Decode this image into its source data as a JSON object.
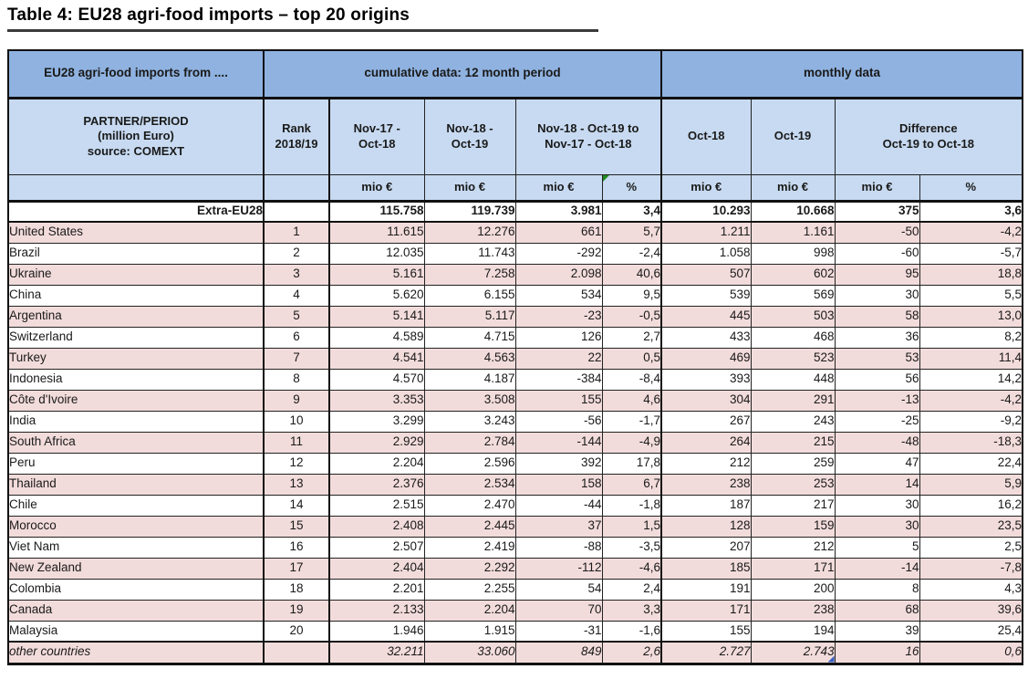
{
  "title": "Table 4: EU28 agri-food imports – top 20 origins",
  "colors": {
    "group_header_blue": "#8FB2E0",
    "sub_header_blue": "#C7DAF1",
    "row_pink": "#F2DCDB",
    "flag_green": "#1f8a1f",
    "flag_blue": "#3b5fc0"
  },
  "table": {
    "corner_label": "EU28 agri-food imports from ....",
    "group_headers": [
      "cumulative data: 12 month period",
      "monthly data"
    ],
    "partner_header": "PARTNER/PERIOD\n(million Euro)\nsource: COMEXT",
    "col_headers": {
      "rank": "Rank\n2018/19",
      "period1": "Nov-17 -\nOct-18",
      "period2": "Nov-18 -\nOct-19",
      "cum_diff": "Nov-18 - Oct-19 to\nNov-17 - Oct-18",
      "month1": "Oct-18",
      "month2": "Oct-19",
      "month_diff": "Difference\nOct-19 to Oct-18"
    },
    "unit_row": [
      "mio €",
      "mio €",
      "mio €",
      "%",
      "mio €",
      "mio €",
      "mio €",
      "%"
    ],
    "total_row": {
      "label": "Extra-EU28",
      "rank": "",
      "values": [
        "115.758",
        "119.739",
        "3.981",
        "3,4",
        "10.293",
        "10.668",
        "375",
        "3,6"
      ]
    },
    "rows": [
      {
        "country": "United States",
        "rank": "1",
        "values": [
          "11.615",
          "12.276",
          "661",
          "5,7",
          "1.211",
          "1.161",
          "-50",
          "-4,2"
        ]
      },
      {
        "country": "Brazil",
        "rank": "2",
        "values": [
          "12.035",
          "11.743",
          "-292",
          "-2,4",
          "1.058",
          "998",
          "-60",
          "-5,7"
        ]
      },
      {
        "country": "Ukraine",
        "rank": "3",
        "values": [
          "5.161",
          "7.258",
          "2.098",
          "40,6",
          "507",
          "602",
          "95",
          "18,8"
        ]
      },
      {
        "country": "China",
        "rank": "4",
        "values": [
          "5.620",
          "6.155",
          "534",
          "9,5",
          "539",
          "569",
          "30",
          "5,5"
        ]
      },
      {
        "country": "Argentina",
        "rank": "5",
        "values": [
          "5.141",
          "5.117",
          "-23",
          "-0,5",
          "445",
          "503",
          "58",
          "13,0"
        ]
      },
      {
        "country": "Switzerland",
        "rank": "6",
        "values": [
          "4.589",
          "4.715",
          "126",
          "2,7",
          "433",
          "468",
          "36",
          "8,2"
        ]
      },
      {
        "country": "Turkey",
        "rank": "7",
        "values": [
          "4.541",
          "4.563",
          "22",
          "0,5",
          "469",
          "523",
          "53",
          "11,4"
        ]
      },
      {
        "country": "Indonesia",
        "rank": "8",
        "values": [
          "4.570",
          "4.187",
          "-384",
          "-8,4",
          "393",
          "448",
          "56",
          "14,2"
        ]
      },
      {
        "country": "Côte d'Ivoire",
        "rank": "9",
        "values": [
          "3.353",
          "3.508",
          "155",
          "4,6",
          "304",
          "291",
          "-13",
          "-4,2"
        ]
      },
      {
        "country": "India",
        "rank": "10",
        "values": [
          "3.299",
          "3.243",
          "-56",
          "-1,7",
          "267",
          "243",
          "-25",
          "-9,2"
        ]
      },
      {
        "country": "South Africa",
        "rank": "11",
        "values": [
          "2.929",
          "2.784",
          "-144",
          "-4,9",
          "264",
          "215",
          "-48",
          "-18,3"
        ]
      },
      {
        "country": "Peru",
        "rank": "12",
        "values": [
          "2.204",
          "2.596",
          "392",
          "17,8",
          "212",
          "259",
          "47",
          "22,4"
        ]
      },
      {
        "country": "Thailand",
        "rank": "13",
        "values": [
          "2.376",
          "2.534",
          "158",
          "6,7",
          "238",
          "253",
          "14",
          "5,9"
        ]
      },
      {
        "country": "Chile",
        "rank": "14",
        "values": [
          "2.515",
          "2.470",
          "-44",
          "-1,8",
          "187",
          "217",
          "30",
          "16,2"
        ]
      },
      {
        "country": "Morocco",
        "rank": "15",
        "values": [
          "2.408",
          "2.445",
          "37",
          "1,5",
          "128",
          "159",
          "30",
          "23,5"
        ]
      },
      {
        "country": "Viet Nam",
        "rank": "16",
        "values": [
          "2.507",
          "2.419",
          "-88",
          "-3,5",
          "207",
          "212",
          "5",
          "2,5"
        ]
      },
      {
        "country": "New Zealand",
        "rank": "17",
        "values": [
          "2.404",
          "2.292",
          "-112",
          "-4,6",
          "185",
          "171",
          "-14",
          "-7,8"
        ]
      },
      {
        "country": "Colombia",
        "rank": "18",
        "values": [
          "2.201",
          "2.255",
          "54",
          "2,4",
          "191",
          "200",
          "8",
          "4,3"
        ]
      },
      {
        "country": "Canada",
        "rank": "19",
        "values": [
          "2.133",
          "2.204",
          "70",
          "3,3",
          "171",
          "238",
          "68",
          "39,6"
        ]
      },
      {
        "country": "Malaysia",
        "rank": "20",
        "values": [
          "1.946",
          "1.915",
          "-31",
          "-1,6",
          "155",
          "194",
          "39",
          "25,4"
        ]
      }
    ],
    "footer_row": {
      "label": "other countries",
      "rank": "",
      "values": [
        "32.211",
        "33.060",
        "849",
        "2,6",
        "2.727",
        "2.743",
        "16",
        "0,6"
      ]
    }
  }
}
